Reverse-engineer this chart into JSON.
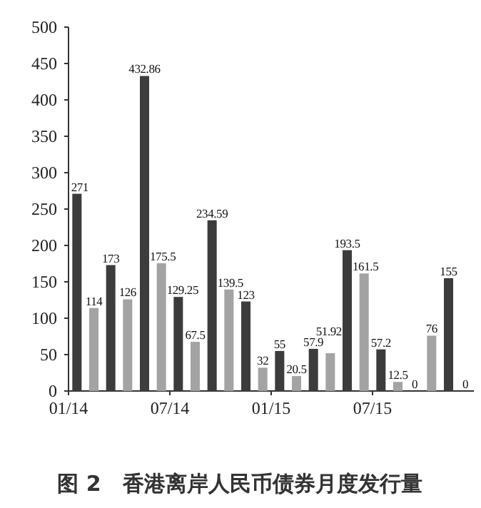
{
  "chart_data": {
    "type": "bar",
    "title": "图 2　香港离岸人民币债券月度发行量",
    "categories": [
      "01/14",
      null,
      null,
      null,
      null,
      null,
      "07/14",
      null,
      null,
      null,
      null,
      null,
      "01/15",
      null,
      null,
      null,
      null,
      null,
      "07/15",
      null,
      null,
      null,
      null,
      null
    ],
    "values": [
      271,
      114,
      173,
      126,
      432.86,
      175.5,
      129.25,
      67.5,
      234.59,
      139.5,
      123,
      32,
      55,
      20.5,
      57.9,
      51.92,
      193.5,
      161.5,
      57.2,
      12.5,
      0,
      76,
      155,
      0
    ],
    "colors": [
      "#3c3c3c",
      "#a3a3a3",
      "#3c3c3c",
      "#a3a3a3",
      "#3c3c3c",
      "#a3a3a3",
      "#3c3c3c",
      "#a3a3a3",
      "#3c3c3c",
      "#a3a3a3",
      "#3c3c3c",
      "#a3a3a3",
      "#3c3c3c",
      "#a3a3a3",
      "#3c3c3c",
      "#a3a3a3",
      "#3c3c3c",
      "#a3a3a3",
      "#3c3c3c",
      "#a3a3a3",
      "#3c3c3c",
      "#a3a3a3",
      "#3c3c3c",
      "#a3a3a3"
    ],
    "ylim": [
      0,
      500
    ],
    "yticks": [
      0,
      50,
      100,
      150,
      200,
      250,
      300,
      350,
      400,
      450,
      500
    ],
    "data_labels": true
  }
}
